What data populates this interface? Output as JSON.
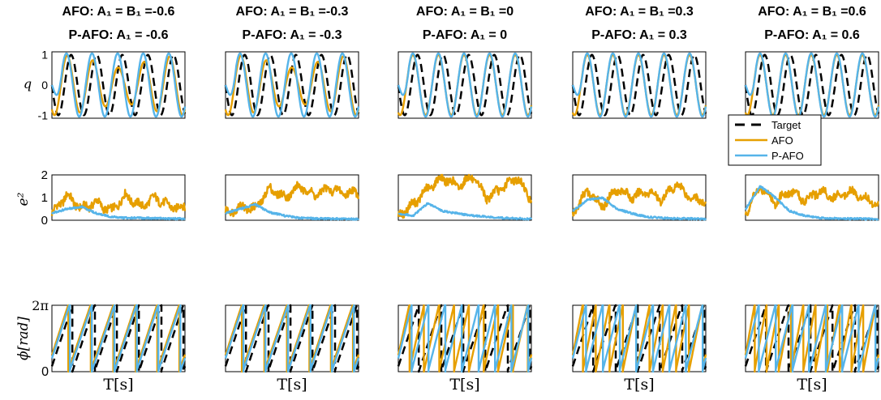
{
  "colors": {
    "target": "#000000",
    "afo": "#E69F00",
    "pafo": "#56B4E9",
    "axis": "#000000"
  },
  "ylabels": {
    "q": "q",
    "e2": "e²",
    "phi": "ϕ[rad]"
  },
  "xlabel": "T[s]",
  "legend": {
    "entries": [
      "Target",
      "AFO",
      "P-AFO"
    ]
  },
  "columns": [
    {
      "title1": "AFO: A₁ = B₁ =-0.6",
      "title2": "P-AFO: A₁ = -0.6"
    },
    {
      "title1": "AFO: A₁ = B₁ =-0.3",
      "title2": "P-AFO: A₁ = -0.3"
    },
    {
      "title1": "AFO: A₁ = B₁ =0",
      "title2": "P-AFO: A₁ = 0"
    },
    {
      "title1": "AFO: A₁ = B₁ =0.3",
      "title2": "P-AFO: A₁ = 0.3"
    },
    {
      "title1": "AFO: A₁ = B₁ =0.6",
      "title2": "P-AFO: A₁ = 0.6"
    }
  ],
  "chart_data": [
    {
      "type": "line",
      "row": "q",
      "ylabel": "q",
      "ylim": [
        -1.1,
        1.1
      ],
      "yticks": [
        "1",
        "0",
        "-1"
      ],
      "grid": false,
      "legend_position": "below the last column of this row",
      "series": [
        {
          "name": "Target",
          "style": "dashed",
          "values": [
            0,
            0.71,
            1,
            0.71,
            0,
            -0.71,
            -1,
            -0.71,
            0
          ]
        },
        {
          "name": "AFO",
          "values_by_column": [
            [
              0,
              0.6,
              0.6,
              0.3,
              -0.6,
              -0.5
            ],
            [
              0,
              0.65,
              0.65,
              0.4,
              -0.7,
              -0.6
            ],
            [
              0,
              0.95,
              0.95,
              0.9,
              -1,
              -1
            ],
            [
              0,
              0.9,
              1,
              1,
              -1.1,
              -1
            ],
            [
              0,
              0.95,
              1,
              1,
              -1,
              -1
            ]
          ]
        },
        {
          "name": "P-AFO",
          "values": [
            0,
            1.05,
            1,
            1,
            -1.1,
            -1
          ]
        }
      ]
    },
    {
      "type": "line",
      "row": "e2",
      "ylabel": "e²",
      "ylim": [
        0,
        2
      ],
      "yticks": [
        "2",
        "1",
        "0"
      ],
      "grid": false,
      "series": [
        {
          "name": "AFO",
          "values_by_column": [
            [
              0.3,
              1.1,
              0.5,
              0.8,
              0.4,
              1.1,
              0.6,
              1.0,
              0.6,
              0.55
            ],
            [
              0.3,
              0.6,
              0.5,
              1.4,
              1.0,
              1.5,
              1.1,
              1.4,
              1.2,
              1.25
            ],
            [
              0.2,
              0.7,
              1.4,
              1.9,
              1.5,
              1.9,
              1.0,
              1.4,
              1.9,
              0.9
            ],
            [
              0.3,
              1.3,
              0.6,
              1.4,
              1.0,
              1.3,
              0.9,
              1.6,
              1.0,
              0.8
            ],
            [
              0.3,
              1.5,
              0.8,
              1.3,
              0.9,
              1.3,
              1.0,
              1.3,
              1.0,
              0.7
            ]
          ]
        },
        {
          "name": "P-AFO",
          "values_by_column": [
            [
              0.3,
              0.5,
              0.6,
              0.3,
              0.15,
              0.1,
              0.1,
              0.08,
              0.07,
              0.06
            ],
            [
              0.3,
              0.5,
              0.7,
              0.35,
              0.2,
              0.1,
              0.08,
              0.07,
              0.06,
              0.05
            ],
            [
              0.3,
              0.2,
              0.75,
              0.4,
              0.3,
              0.2,
              0.15,
              0.1,
              0.08,
              0.06
            ],
            [
              0.4,
              0.9,
              1.0,
              0.5,
              0.3,
              0.15,
              0.1,
              0.08,
              0.07,
              0.05
            ],
            [
              0.5,
              1.5,
              1.0,
              0.4,
              0.2,
              0.1,
              0.08,
              0.07,
              0.06,
              0.05
            ]
          ]
        }
      ]
    },
    {
      "type": "line",
      "row": "phi",
      "ylabel": "ϕ[rad]",
      "ylim": [
        0,
        6.2832
      ],
      "yticks": [
        "2π",
        "0"
      ],
      "grid": false,
      "note": "sawtooth phase signals wrapping at 2π",
      "series": [
        {
          "name": "Target",
          "style": "dashed",
          "cycles": 6
        },
        {
          "name": "AFO",
          "cycles_by_column": [
            6,
            6,
            9,
            10,
            11
          ]
        },
        {
          "name": "P-AFO",
          "cycles_by_column": [
            6,
            6,
            8,
            8,
            8
          ]
        }
      ]
    }
  ]
}
